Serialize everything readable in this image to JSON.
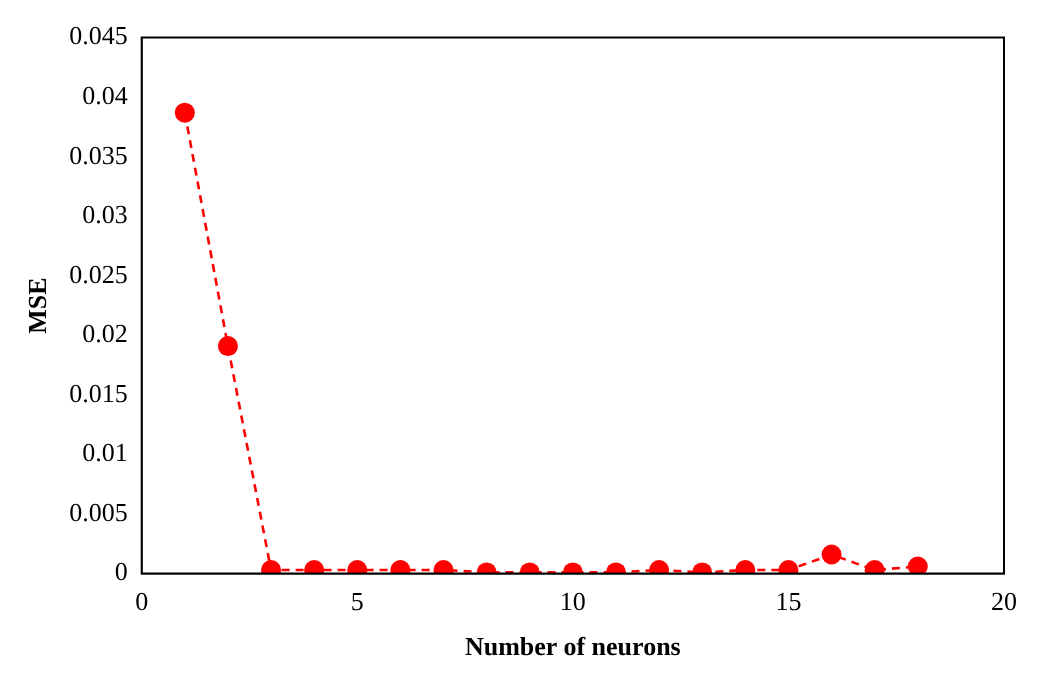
{
  "chart_data": {
    "type": "line",
    "xlabel": "Number of neurons",
    "ylabel": "MSE",
    "x": [
      1,
      2,
      3,
      4,
      5,
      6,
      7,
      8,
      9,
      10,
      11,
      12,
      13,
      14,
      15,
      16,
      17,
      18
    ],
    "series": [
      {
        "color": "#ff0000",
        "values": [
          0.0387,
          0.0191,
          0.0003,
          0.0003,
          0.0003,
          0.0003,
          0.0003,
          0.0001,
          0.0001,
          0.0001,
          0.0001,
          0.0003,
          0.0001,
          0.0003,
          0.0003,
          0.0016,
          0.0003,
          0.0006
        ]
      }
    ],
    "xlim": [
      0,
      20
    ],
    "xticks": [
      0,
      5,
      10,
      15,
      20
    ],
    "ylim": [
      0,
      0.045
    ],
    "yticks": [
      0,
      0.005,
      0.01,
      0.015,
      0.02,
      0.025,
      0.03,
      0.035,
      0.04,
      0.045
    ],
    "grid": false,
    "legend": false,
    "marker": "circle",
    "line_style": "dashed"
  }
}
